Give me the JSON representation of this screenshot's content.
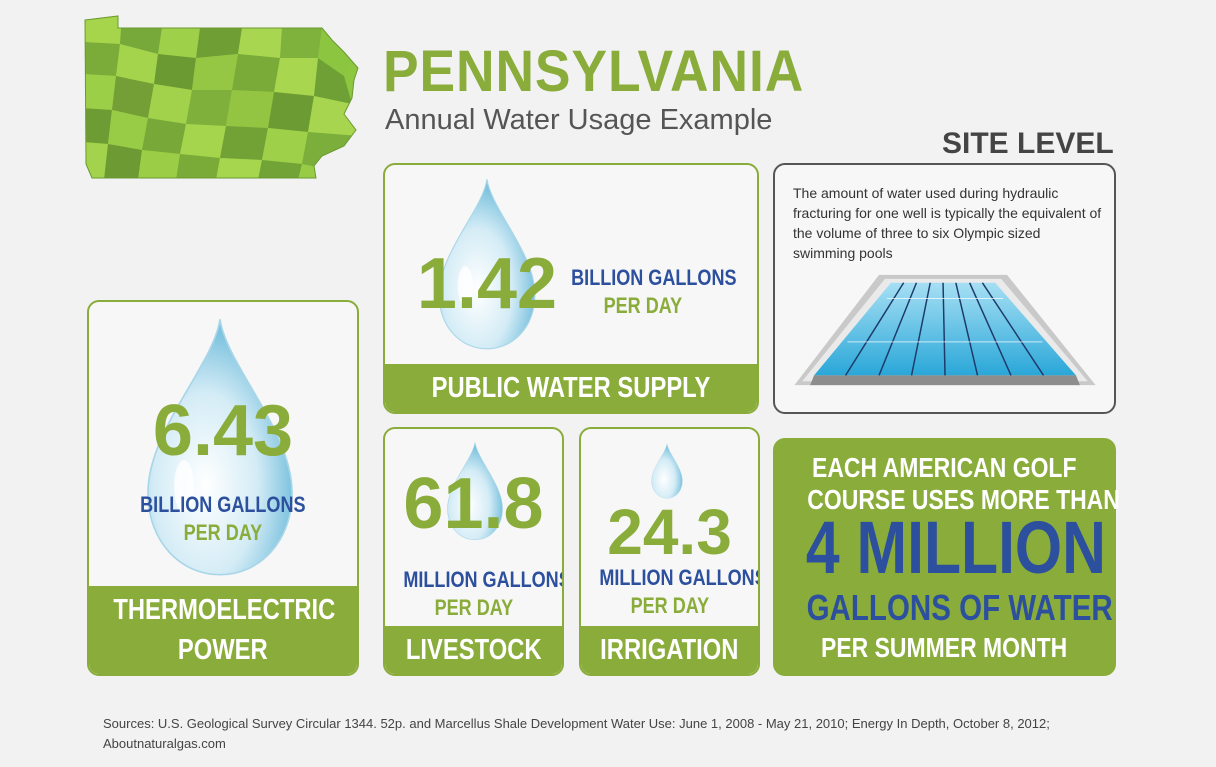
{
  "header": {
    "title": "PENNSYLVANIA",
    "subtitle": "Annual Water Usage Example",
    "site_level": "SITE LEVEL"
  },
  "colors": {
    "green": "#8aac3a",
    "blue": "#2c4f9e",
    "dark_text": "#444444"
  },
  "cards": {
    "thermoelectric": {
      "value": "6.43",
      "unit_line1": "BILLION GALLONS",
      "unit_line2": "PER DAY",
      "label_line1": "THERMOELECTRIC",
      "label_line2": "POWER",
      "icon": "water-drop-icon"
    },
    "public_water": {
      "value": "1.42",
      "unit_line1": "BILLION GALLONS",
      "unit_line2": "PER DAY",
      "label": "PUBLIC WATER SUPPLY",
      "icon": "water-drop-icon"
    },
    "livestock": {
      "value": "61.8",
      "unit_line1": "MILLION GALLONS",
      "unit_line2": "PER DAY",
      "label": "LIVESTOCK",
      "icon": "water-drop-icon"
    },
    "irrigation": {
      "value": "24.3",
      "unit_line1": "MILLION GALLONS",
      "unit_line2": "PER DAY",
      "label": "IRRIGATION",
      "icon": "water-drop-icon"
    }
  },
  "site_info": {
    "text": "The amount of water used during hydraulic fracturing for one well is typically the equivalent of the volume of three to six Olympic sized swimming pools",
    "icon": "swimming-pool-icon"
  },
  "golf": {
    "line1": "EACH AMERICAN GOLF",
    "line2": "COURSE USES MORE THAN",
    "big": "4 MILLION",
    "line3": "GALLONS OF WATER",
    "line4": "PER SUMMER MONTH"
  },
  "sources": "Sources: U.S. Geological Survey Circular 1344. 52p. and Marcellus Shale Development Water Use: June 1, 2008 - May 21, 2010; Energy In Depth, October 8, 2012; Aboutnaturalgas.com"
}
